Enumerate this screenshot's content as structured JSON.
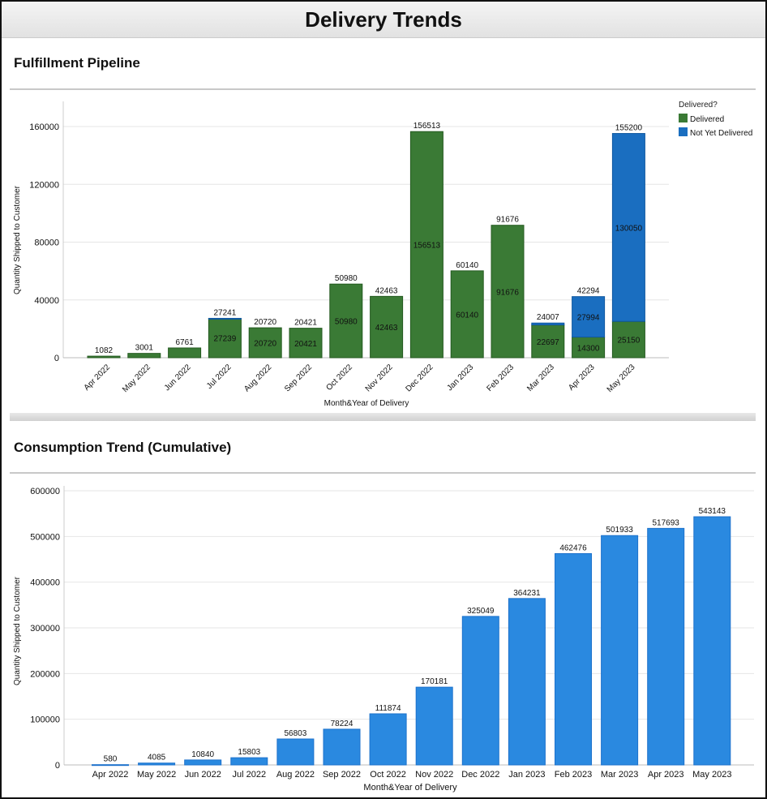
{
  "page_title": "Delivery Trends",
  "colors": {
    "delivered": "#3a7a35",
    "not_yet_delivered": "#1a6ec0",
    "cumulative": "#2a89e0"
  },
  "chart_data": [
    {
      "type": "bar",
      "stacked": true,
      "title": "Fulfillment Pipeline",
      "xlabel": "Month&Year of Delivery",
      "ylabel": "Quantity Shipped to Customer",
      "ylim": [
        0,
        170000
      ],
      "yticks": [
        "0",
        "40000",
        "80000",
        "120000",
        "160000"
      ],
      "grid": true,
      "legend": {
        "title": "Delivered?",
        "placement": "top-right"
      },
      "categories": [
        "Apr 2022",
        "May 2022",
        "Jun 2022",
        "Jul 2022",
        "Aug 2022",
        "Sep 2022",
        "Oct 2022",
        "Nov 2022",
        "Dec 2022",
        "Jan 2023",
        "Feb 2023",
        "Mar 2023",
        "Apr 2023",
        "May 2023"
      ],
      "series": [
        {
          "name": "Delivered",
          "values": [
            1082,
            3001,
            6761,
            27239,
            20720,
            20421,
            50980,
            42463,
            156513,
            60140,
            91676,
            22697,
            14300,
            25150
          ],
          "labels": [
            "",
            "",
            "",
            "27239",
            "20720",
            "20421",
            "50980",
            "42463",
            "156513",
            "60140",
            "91676",
            "22697",
            "14300",
            "25150"
          ]
        },
        {
          "name": "Not Yet Delivered",
          "values": [
            0,
            0,
            0,
            2,
            0,
            0,
            0,
            0,
            0,
            0,
            0,
            1310,
            27994,
            130050
          ],
          "labels": [
            "",
            "",
            "",
            "",
            "",
            "",
            "",
            "",
            "",
            "",
            "",
            "",
            "27994",
            "130050"
          ]
        }
      ],
      "totals": [
        "1082",
        "3001",
        "6761",
        "27241",
        "20720",
        "20421",
        "50980",
        "42463",
        "156513",
        "60140",
        "91676",
        "24007",
        "42294",
        "155200"
      ]
    },
    {
      "type": "bar",
      "title": "Consumption Trend (Cumulative)",
      "xlabel": "Month&Year of Delivery",
      "ylabel": "Quantity Shipped to Customer",
      "ylim": [
        0,
        600000
      ],
      "yticks": [
        "0",
        "100000",
        "200000",
        "300000",
        "400000",
        "500000",
        "600000"
      ],
      "grid": true,
      "categories": [
        "Apr 2022",
        "May 2022",
        "Jun 2022",
        "Jul 2022",
        "Aug 2022",
        "Sep 2022",
        "Oct 2022",
        "Nov 2022",
        "Dec 2022",
        "Jan 2023",
        "Feb 2023",
        "Mar 2023",
        "Apr 2023",
        "May 2023"
      ],
      "values": [
        580,
        4085,
        10840,
        15803,
        56803,
        78224,
        111874,
        170181,
        325049,
        364231,
        462476,
        501933,
        517693,
        543143
      ],
      "labels": [
        "580",
        "4085",
        "10840",
        "15803",
        "56803",
        "78224",
        "111874",
        "170181",
        "325049",
        "364231",
        "462476",
        "501933",
        "517693",
        "543143"
      ]
    }
  ]
}
